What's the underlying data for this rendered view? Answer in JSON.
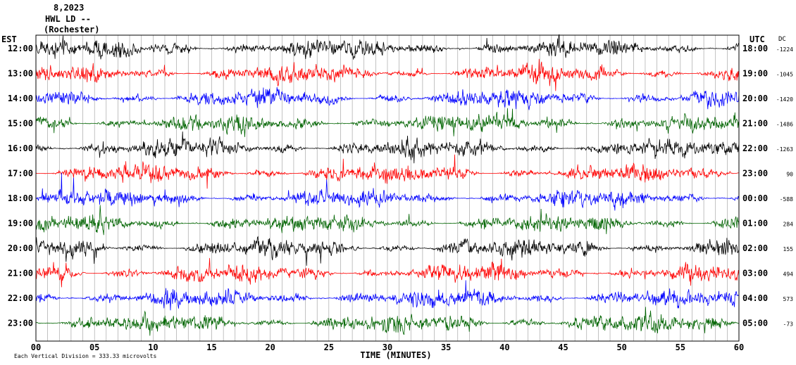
{
  "header": {
    "date": "8,2023",
    "station": "HWL LD --",
    "location": "(Rochester)"
  },
  "chart_data": {
    "type": "line",
    "title": "",
    "xlabel": "TIME (MINUTES)",
    "left_axis_label": "EST",
    "right_axis_label": "UTC",
    "dc_label": "DC",
    "xlim": [
      0,
      60
    ],
    "x_ticks": [
      "00",
      "05",
      "10",
      "15",
      "20",
      "25",
      "30",
      "35",
      "40",
      "45",
      "50",
      "55",
      "60"
    ],
    "grid": "vertical",
    "series_colors": [
      "#000000",
      "#ff0000",
      "#0000ff",
      "#006400"
    ],
    "rows": [
      {
        "est": "12:00",
        "utc": "18:00",
        "dc": "-1224",
        "color": "#000000"
      },
      {
        "est": "13:00",
        "utc": "19:00",
        "dc": "-1045",
        "color": "#ff0000"
      },
      {
        "est": "14:00",
        "utc": "20:00",
        "dc": "-1420",
        "color": "#0000ff"
      },
      {
        "est": "15:00",
        "utc": "21:00",
        "dc": "-1486",
        "color": "#006400"
      },
      {
        "est": "16:00",
        "utc": "22:00",
        "dc": "-1263",
        "color": "#000000"
      },
      {
        "est": "17:00",
        "utc": "23:00",
        "dc": "90",
        "color": "#ff0000"
      },
      {
        "est": "18:00",
        "utc": "00:00",
        "dc": "-588",
        "color": "#0000ff"
      },
      {
        "est": "19:00",
        "utc": "01:00",
        "dc": "284",
        "color": "#006400"
      },
      {
        "est": "20:00",
        "utc": "02:00",
        "dc": "155",
        "color": "#000000"
      },
      {
        "est": "21:00",
        "utc": "03:00",
        "dc": "494",
        "color": "#ff0000"
      },
      {
        "est": "22:00",
        "utc": "04:00",
        "dc": "573",
        "color": "#0000ff"
      },
      {
        "est": "23:00",
        "utc": "05:00",
        "dc": "-73",
        "color": "#006400"
      }
    ],
    "scale_note": "Each Vertical Division =  333.33 microvolts"
  }
}
